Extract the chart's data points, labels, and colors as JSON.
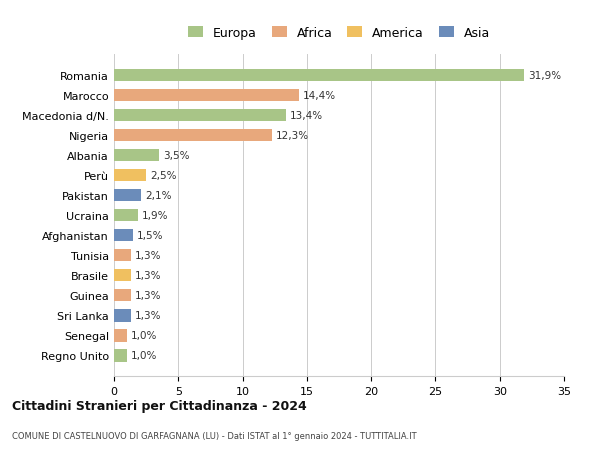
{
  "categories": [
    "Romania",
    "Marocco",
    "Macedonia d/N.",
    "Nigeria",
    "Albania",
    "Perù",
    "Pakistan",
    "Ucraina",
    "Afghanistan",
    "Tunisia",
    "Brasile",
    "Guinea",
    "Sri Lanka",
    "Senegal",
    "Regno Unito"
  ],
  "values": [
    31.9,
    14.4,
    13.4,
    12.3,
    3.5,
    2.5,
    2.1,
    1.9,
    1.5,
    1.3,
    1.3,
    1.3,
    1.3,
    1.0,
    1.0
  ],
  "labels": [
    "31,9%",
    "14,4%",
    "13,4%",
    "12,3%",
    "3,5%",
    "2,5%",
    "2,1%",
    "1,9%",
    "1,5%",
    "1,3%",
    "1,3%",
    "1,3%",
    "1,3%",
    "1,0%",
    "1,0%"
  ],
  "regions": [
    "Europa",
    "Africa",
    "Europa",
    "Africa",
    "Europa",
    "America",
    "Asia",
    "Europa",
    "Asia",
    "Africa",
    "America",
    "Africa",
    "Asia",
    "Africa",
    "Europa"
  ],
  "colors": {
    "Europa": "#a8c587",
    "Africa": "#e8a87c",
    "America": "#f0c060",
    "Asia": "#6b8cba"
  },
  "xlim": [
    0,
    35
  ],
  "xticks": [
    0,
    5,
    10,
    15,
    20,
    25,
    30,
    35
  ],
  "title": "Cittadini Stranieri per Cittadinanza - 2024",
  "subtitle": "COMUNE DI CASTELNUOVO DI GARFAGNANA (LU) - Dati ISTAT al 1° gennaio 2024 - TUTTITALIA.IT",
  "background_color": "#ffffff",
  "grid_color": "#cccccc",
  "bar_height": 0.62
}
